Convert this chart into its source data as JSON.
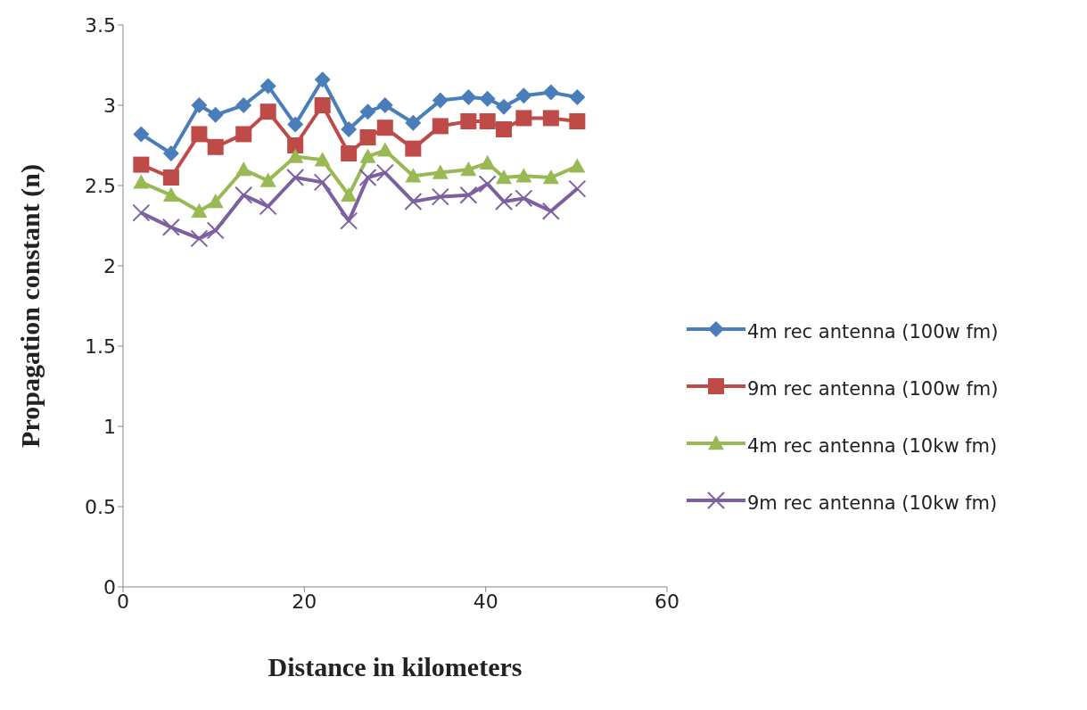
{
  "chart_data": {
    "type": "line",
    "xlabel": "Distance in kilometers",
    "ylabel": "Propagation constant (n)",
    "x": [
      2,
      5.3,
      8.4,
      10.2,
      13.3,
      16,
      19,
      22,
      24.9,
      27,
      28.9,
      32,
      35,
      38.1,
      40.2,
      42,
      44.2,
      47.2,
      50.1
    ],
    "series": [
      {
        "name": "4m rec antenna (100w fm)",
        "color": "#4a7ebb",
        "marker": "diamond",
        "values": [
          2.82,
          2.7,
          3.0,
          2.94,
          3.0,
          3.12,
          2.88,
          3.16,
          2.85,
          2.96,
          3.0,
          2.89,
          3.03,
          3.05,
          3.04,
          2.99,
          3.06,
          3.08,
          3.05
        ]
      },
      {
        "name": "9m rec antenna (100w fm)",
        "color": "#be4b48",
        "marker": "square",
        "values": [
          2.63,
          2.55,
          2.82,
          2.74,
          2.82,
          2.96,
          2.75,
          3.0,
          2.7,
          2.8,
          2.86,
          2.73,
          2.87,
          2.9,
          2.9,
          2.85,
          2.92,
          2.92,
          2.9
        ]
      },
      {
        "name": "4m rec antenna (10kw fm)",
        "color": "#98b954",
        "marker": "triangle",
        "values": [
          2.52,
          2.44,
          2.34,
          2.4,
          2.6,
          2.53,
          2.68,
          2.66,
          2.44,
          2.68,
          2.72,
          2.56,
          2.58,
          2.6,
          2.64,
          2.55,
          2.56,
          2.55,
          2.62
        ]
      },
      {
        "name": "9m rec antenna (10kw fm)",
        "color": "#7d60a0",
        "marker": "cross",
        "values": [
          2.33,
          2.24,
          2.17,
          2.22,
          2.44,
          2.37,
          2.55,
          2.52,
          2.28,
          2.55,
          2.58,
          2.4,
          2.43,
          2.44,
          2.51,
          2.4,
          2.42,
          2.34,
          2.48
        ]
      }
    ],
    "xlim": [
      0,
      60
    ],
    "xticks": [
      0,
      20,
      40,
      60
    ],
    "ylim": [
      0,
      3.5
    ],
    "yticks": [
      0,
      0.5,
      1,
      1.5,
      2,
      2.5,
      3,
      3.5
    ],
    "grid": false,
    "legend": "right"
  }
}
